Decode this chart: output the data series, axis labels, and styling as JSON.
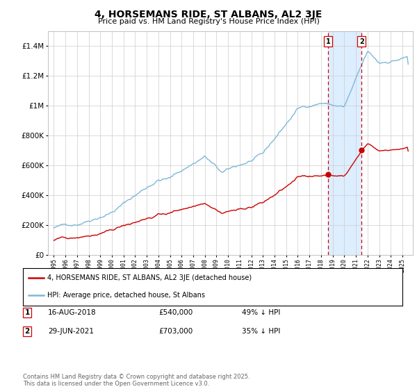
{
  "title": "4, HORSEMANS RIDE, ST ALBANS, AL2 3JE",
  "subtitle": "Price paid vs. HM Land Registry's House Price Index (HPI)",
  "hpi_color": "#7db8d8",
  "property_color": "#cc0000",
  "background_color": "#ffffff",
  "grid_color": "#cccccc",
  "highlight_color": "#ddeeff",
  "dashed_line_color": "#cc0000",
  "sale1_date": "16-AUG-2018",
  "sale1_price": 540000,
  "sale1_label": "49% ↓ HPI",
  "sale2_date": "29-JUN-2021",
  "sale2_price": 703000,
  "sale2_label": "35% ↓ HPI",
  "legend_label_property": "4, HORSEMANS RIDE, ST ALBANS, AL2 3JE (detached house)",
  "legend_label_hpi": "HPI: Average price, detached house, St Albans",
  "footer": "Contains HM Land Registry data © Crown copyright and database right 2025.\nThis data is licensed under the Open Government Licence v3.0.",
  "ylim": [
    0,
    1500000
  ],
  "yticks": [
    0,
    200000,
    400000,
    600000,
    800000,
    1000000,
    1200000,
    1400000
  ],
  "ytick_labels": [
    "£0",
    "£200K",
    "£400K",
    "£600K",
    "£800K",
    "£1M",
    "£1.2M",
    "£1.4M"
  ],
  "sale1_year": 2018.62,
  "sale2_year": 2021.49
}
